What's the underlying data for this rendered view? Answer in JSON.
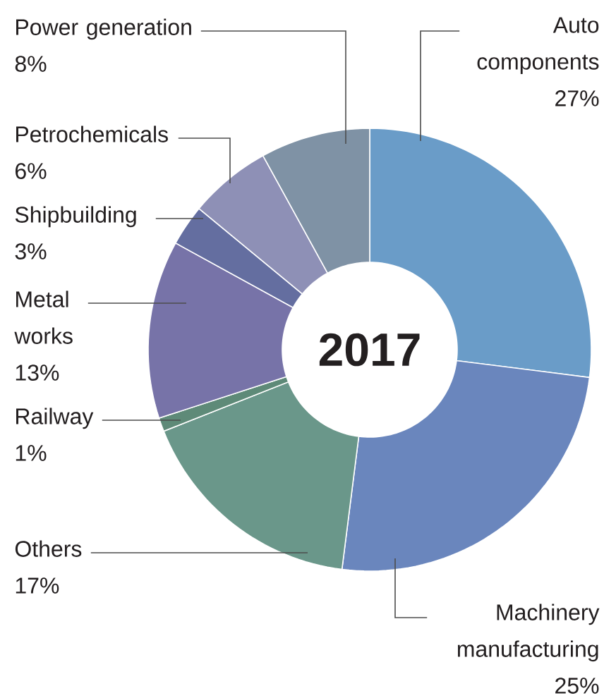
{
  "chart_data": {
    "type": "donut",
    "title": "2017",
    "categories": [
      "Auto components",
      "Machinery manufacturing",
      "Others",
      "Railway",
      "Metal works",
      "Shipbuilding",
      "Petrochemicals",
      "Power generation"
    ],
    "values": [
      27,
      25,
      17,
      1,
      13,
      3,
      6,
      8
    ],
    "value_labels": [
      "27%",
      "25%",
      "17%",
      "1%",
      "13%",
      "3%",
      "6%",
      "8%"
    ],
    "colors": [
      "#6a9cc8",
      "#6a86bd",
      "#6a978a",
      "#5e8a78",
      "#7773a8",
      "#646ea0",
      "#8e90b6",
      "#7f92a5"
    ]
  }
}
